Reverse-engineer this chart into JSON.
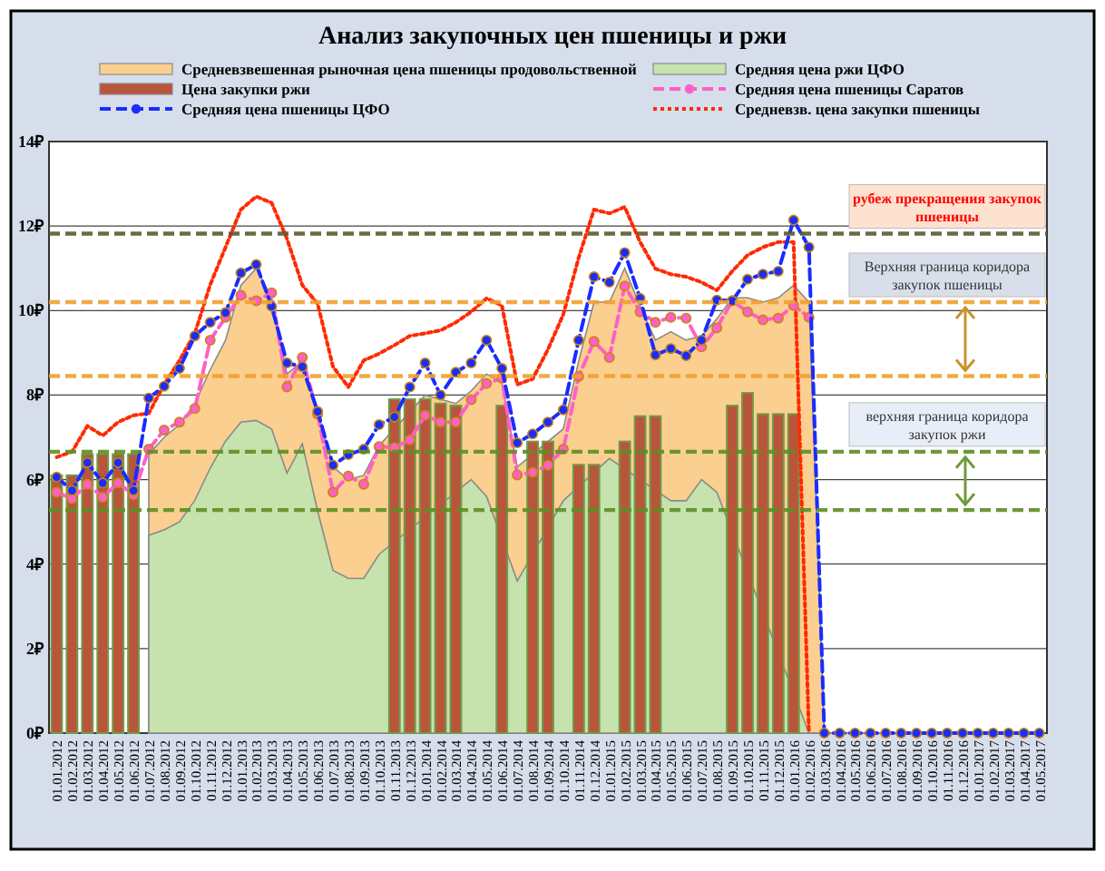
{
  "chart_data": {
    "type": "line",
    "title": "Анализ закупочных цен пшеницы и ржи",
    "categories": [
      "01.01.2012",
      "01.02.2012",
      "01.03.2012",
      "01.04.2012",
      "01.05.2012",
      "01.06.2012",
      "01.07.2012",
      "01.08.2012",
      "01.09.2012",
      "01.10.2012",
      "01.11.2012",
      "01.12.2012",
      "01.01.2013",
      "01.02.2013",
      "01.03.2013",
      "01.04.2013",
      "01.05.2013",
      "01.06.2013",
      "01.07.2013",
      "01.08.2013",
      "01.09.2013",
      "01.10.2013",
      "01.11.2013",
      "01.12.2013",
      "01.01.2014",
      "01.02.2014",
      "01.03.2014",
      "01.04.2014",
      "01.05.2014",
      "01.06.2014",
      "01.07.2014",
      "01.08.2014",
      "01.09.2014",
      "01.10.2014",
      "01.11.2014",
      "01.12.2014",
      "01.01.2015",
      "01.02.2015",
      "01.03.2015",
      "01.04.2015",
      "01.05.2015",
      "01.06.2015",
      "01.07.2015",
      "01.08.2015",
      "01.09.2015",
      "01.10.2015",
      "01.11.2015",
      "01.12.2015",
      "01.01.2016",
      "01.02.2016",
      "01.03.2016",
      "01.04.2016",
      "01.05.2016",
      "01.06.2016",
      "01.07.2016",
      "01.08.2016",
      "01.09.2016",
      "01.10.2016",
      "01.11.2016",
      "01.12.2016",
      "01.01.2017",
      "01.02.2017",
      "01.03.2017",
      "01.04.2017",
      "01.05.2017"
    ],
    "series": [
      {
        "name": "Средневзвешенная рыночная цена пшеницы продовольственной",
        "type": "area",
        "color": "#fbcf8f",
        "values": [
          null,
          null,
          null,
          null,
          null,
          null,
          6.6,
          7.0,
          7.3,
          7.8,
          8.6,
          9.3,
          10.6,
          11.0,
          10.3,
          8.5,
          8.8,
          7.6,
          6.3,
          6.0,
          6.1,
          6.8,
          null,
          null,
          8.0,
          null,
          7.8,
          8.1,
          8.5,
          8.3,
          6.3,
          null,
          null,
          7.2,
          8.8,
          10.2,
          10.2,
          11.0,
          10.1,
          9.3,
          9.5,
          9.3,
          9.4,
          9.8,
          10.3,
          10.3,
          10.2,
          10.3,
          10.6,
          10.2,
          0,
          0,
          0,
          0,
          0,
          0,
          0,
          0,
          0,
          0,
          0,
          0,
          0,
          0,
          0
        ]
      },
      {
        "name": "Цена закупки ржи",
        "type": "bar",
        "color": "#b9553a",
        "values": [
          6.1,
          6.1,
          6.6,
          6.6,
          6.6,
          6.6,
          null,
          null,
          null,
          null,
          null,
          null,
          null,
          null,
          null,
          null,
          null,
          null,
          null,
          null,
          null,
          null,
          7.9,
          7.9,
          7.9,
          7.8,
          7.75,
          null,
          null,
          7.75,
          null,
          6.9,
          6.9,
          null,
          6.35,
          6.35,
          null,
          6.9,
          7.5,
          7.5,
          null,
          null,
          null,
          null,
          7.75,
          8.05,
          7.55,
          7.55,
          7.55,
          null,
          null,
          null,
          null,
          null,
          null,
          null,
          null,
          null,
          null,
          null,
          null,
          null,
          null,
          null,
          null
        ]
      },
      {
        "name": "Средняя цена пшеницы ЦФО",
        "color": "#1a2cff",
        "marker": "circle",
        "line_style": "dashed",
        "values": [
          6.06,
          5.74,
          6.4,
          5.92,
          6.4,
          5.74,
          7.93,
          8.21,
          8.63,
          9.4,
          9.72,
          9.95,
          10.89,
          11.09,
          10.1,
          8.76,
          8.67,
          7.61,
          6.34,
          6.59,
          6.72,
          7.3,
          7.48,
          8.19,
          8.76,
          8.0,
          8.54,
          8.76,
          9.3,
          8.63,
          6.87,
          7.08,
          7.36,
          7.65,
          9.3,
          10.8,
          10.67,
          11.37,
          10.29,
          8.95,
          9.1,
          8.93,
          9.3,
          10.25,
          10.23,
          10.74,
          10.86,
          10.93,
          12.14,
          11.5,
          0,
          0,
          0,
          0,
          0,
          0,
          0,
          0,
          0,
          0,
          0,
          0,
          0,
          0,
          0
        ]
      },
      {
        "name": "Средняя цена ржи ЦФО",
        "type": "area",
        "color": "#c6e2ad",
        "values": [
          null,
          null,
          null,
          null,
          null,
          null,
          4.68,
          4.81,
          5.0,
          5.51,
          6.27,
          6.91,
          7.36,
          7.4,
          7.2,
          6.15,
          6.85,
          5.25,
          3.85,
          3.66,
          3.66,
          4.23,
          null,
          null,
          null,
          null,
          null,
          6.0,
          5.6,
          null,
          3.6,
          null,
          null,
          5.5,
          null,
          null,
          6.5,
          null,
          null,
          null,
          5.5,
          5.5,
          6.0,
          5.7,
          null,
          null,
          null,
          null,
          null,
          0,
          0,
          0,
          0,
          0,
          0,
          0,
          0,
          0,
          0,
          0,
          0,
          0,
          0,
          0,
          0
        ]
      },
      {
        "name": "Средняя цена пшеницы Саратов",
        "color": "#ff5fc8",
        "marker": "circle",
        "line_style": "dashed",
        "values": [
          5.7,
          5.55,
          5.89,
          5.58,
          5.92,
          5.64,
          6.72,
          7.17,
          7.36,
          7.68,
          9.3,
          9.84,
          10.36,
          10.23,
          10.42,
          8.19,
          8.89,
          7.55,
          5.7,
          6.08,
          5.89,
          6.78,
          6.76,
          6.94,
          7.52,
          7.36,
          7.36,
          7.89,
          8.27,
          8.4,
          6.11,
          6.17,
          6.34,
          6.72,
          8.44,
          9.27,
          8.89,
          10.58,
          9.97,
          9.72,
          9.84,
          9.82,
          9.14,
          9.59,
          10.23,
          9.97,
          9.78,
          9.82,
          10.12,
          9.84,
          null,
          null,
          null,
          null,
          null,
          null,
          null,
          null,
          null,
          null,
          null,
          null,
          null,
          null,
          null
        ]
      },
      {
        "name": "Средневзв. цена закупки пшеницы",
        "color": "#ff2a00",
        "marker": "none",
        "line_style": "dotted",
        "values": [
          6.53,
          6.66,
          7.27,
          7.04,
          7.36,
          7.52,
          7.57,
          8.25,
          8.82,
          9.46,
          10.61,
          11.5,
          12.39,
          12.7,
          12.55,
          11.7,
          10.6,
          10.16,
          8.67,
          8.19,
          8.82,
          8.98,
          9.18,
          9.4,
          9.46,
          9.53,
          9.72,
          9.97,
          10.29,
          10.12,
          8.25,
          8.38,
          9.08,
          9.91,
          11.25,
          12.39,
          12.3,
          12.45,
          11.62,
          10.99,
          10.86,
          10.8,
          10.67,
          10.48,
          10.93,
          11.31,
          11.5,
          11.62,
          11.62,
          0,
          null,
          null,
          null,
          null,
          null,
          null,
          null,
          null,
          null,
          null,
          null,
          null,
          null,
          null,
          null
        ]
      }
    ],
    "ylim": [
      0,
      14
    ],
    "yticks": [
      {
        "value": 0,
        "label": "0₽"
      },
      {
        "value": 2,
        "label": "2₽"
      },
      {
        "value": 4,
        "label": "4₽"
      },
      {
        "value": 6,
        "label": "6₽"
      },
      {
        "value": 8,
        "label": "8₽"
      },
      {
        "value": 10,
        "label": "10₽"
      },
      {
        "value": 12,
        "label": "12₽"
      },
      {
        "value": 14,
        "label": "14₽"
      }
    ],
    "grid": "y",
    "legend": "top",
    "ref_lines": [
      {
        "axis": "y",
        "value": 11.82,
        "label": "рубеж прекращения закупок пшеницы",
        "color": "#5c5a2e",
        "line_style": "dashed"
      },
      {
        "axis": "y",
        "value": 10.2,
        "label": "Верхняя граница коридора закупок пшеницы",
        "color": "#f0a030",
        "line_style": "dashed"
      },
      {
        "axis": "y",
        "value": 8.45,
        "color": "#f0a030",
        "line_style": "dashed"
      },
      {
        "axis": "y",
        "value": 6.66,
        "label": "верхняя граница коридора закупок ржи",
        "color": "#5e8f24",
        "line_style": "dashed"
      },
      {
        "axis": "y",
        "value": 5.28,
        "color": "#5e8f24",
        "line_style": "dashed"
      }
    ]
  }
}
